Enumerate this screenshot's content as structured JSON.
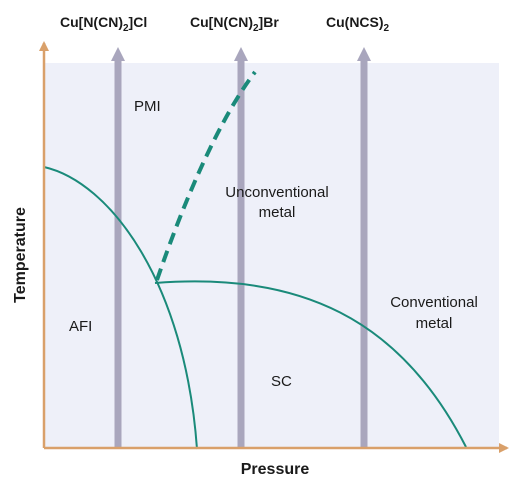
{
  "axes": {
    "x_label": "Pressure",
    "y_label": "Temperature"
  },
  "compounds": [
    {
      "base": "Cu[N(CN)",
      "sub": "2",
      "tail": "]Cl"
    },
    {
      "base": "Cu[N(CN)",
      "sub": "2",
      "tail": "]Br"
    },
    {
      "base": "Cu(NCS)",
      "sub": "2",
      "tail": ""
    }
  ],
  "regions": {
    "pmi": "PMI",
    "unconventional": [
      "Unconventional",
      "metal"
    ],
    "conventional": [
      "Conventional",
      "metal"
    ],
    "afi": "AFI",
    "sc": "SC"
  },
  "colors": {
    "background": "#eef0f9",
    "axis": "#d9a06a",
    "pressure_arrow": "#a9a6bd",
    "boundary": "#1a8a7a"
  }
}
